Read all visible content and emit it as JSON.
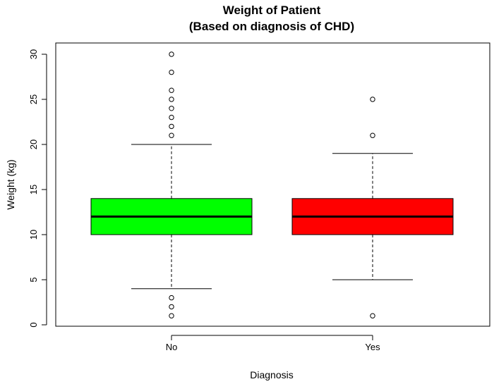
{
  "chart_data": {
    "type": "boxplot",
    "title": "Weight of Patient",
    "subtitle": "(Based on diagnosis of CHD)",
    "xlabel": "Diagnosis",
    "ylabel": "Weight (kg)",
    "ylim": [
      0,
      30
    ],
    "yticks": [
      0,
      5,
      10,
      15,
      20,
      25,
      30
    ],
    "categories": [
      "No",
      "Yes"
    ],
    "grid": false,
    "legend": "none",
    "boxes": [
      {
        "category": "No",
        "color": "#00ff00",
        "whisker_low": 4,
        "q1": 10,
        "median": 12,
        "q3": 14,
        "whisker_high": 20,
        "outliers": [
          1,
          2,
          3,
          21,
          22,
          23,
          24,
          25,
          26,
          28,
          30
        ]
      },
      {
        "category": "Yes",
        "color": "#ff0000",
        "whisker_low": 5,
        "q1": 10,
        "median": 12,
        "q3": 14,
        "whisker_high": 19,
        "outliers": [
          1,
          21,
          25
        ]
      }
    ]
  }
}
